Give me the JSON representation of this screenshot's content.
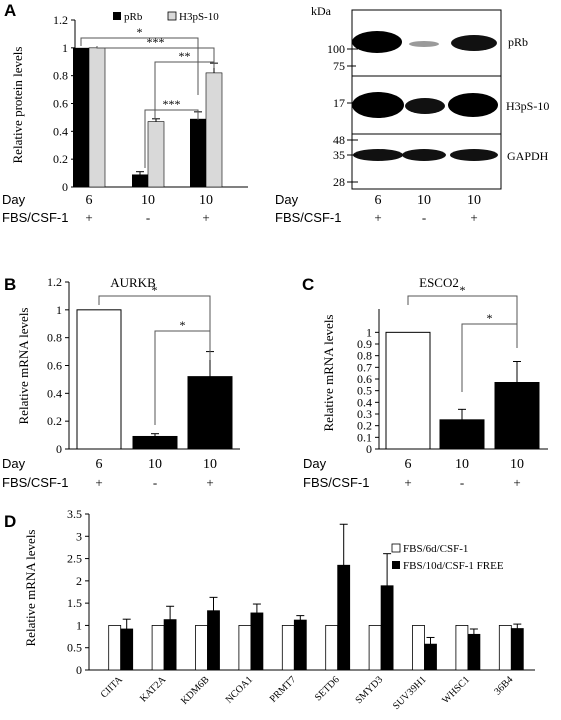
{
  "panels": {
    "A": {
      "letter": "A"
    },
    "B": {
      "letter": "B"
    },
    "C": {
      "letter": "C"
    },
    "D": {
      "letter": "D"
    }
  },
  "conditions": {
    "row1_label": "Day",
    "row2_label": "FBS/CSF-1",
    "days": [
      "6",
      "10",
      "10"
    ],
    "signs": [
      "+",
      "-",
      "+"
    ]
  },
  "chart_data": [
    {
      "panel": "A",
      "type": "bar",
      "title": "",
      "ylabel": "Relative protein levels",
      "ylim": [
        0,
        1.2
      ],
      "yticks": [
        "0",
        "0.2",
        "0.4",
        "0.6",
        "0.8",
        "1",
        "1.2"
      ],
      "categories": [
        "Day 6 +",
        "Day 10 -",
        "Day 10 +"
      ],
      "series": [
        {
          "name": "pRb",
          "values": [
            1.0,
            0.09,
            0.49
          ],
          "errors": [
            0,
            0.02,
            0.05
          ],
          "color": "#000000"
        },
        {
          "name": "H3pS-10",
          "values": [
            1.0,
            0.47,
            0.82
          ],
          "errors": [
            0,
            0.02,
            0.07
          ],
          "color": "#d9d9d9"
        }
      ],
      "significance": [
        "*",
        "***",
        "**",
        "***"
      ]
    },
    {
      "panel": "B",
      "type": "bar",
      "title": "AURKB",
      "ylabel": "Relative mRNA levels",
      "ylim": [
        0,
        1.2
      ],
      "yticks": [
        "0",
        "0.2",
        "0.4",
        "0.6",
        "0.8",
        "1",
        "1.2"
      ],
      "categories": [
        "Day 6 +",
        "Day 10 -",
        "Day 10 +"
      ],
      "values": [
        1.0,
        0.09,
        0.52
      ],
      "errors": [
        0,
        0.02,
        0.18
      ],
      "significance": [
        "*",
        "*"
      ]
    },
    {
      "panel": "C",
      "type": "bar",
      "title": "ESCO2",
      "ylabel": "Relative mRNA levels",
      "ylim": [
        0,
        1.2
      ],
      "yticks": [
        "0",
        "0.1",
        "0.2",
        "0.3",
        "0.4",
        "0.5",
        "0.6",
        "0.7",
        "0.8",
        "0.9",
        "1"
      ],
      "categories": [
        "Day 6 +",
        "Day 10 -",
        "Day 10 +"
      ],
      "values": [
        1.0,
        0.25,
        0.57
      ],
      "errors": [
        0,
        0.09,
        0.18
      ],
      "significance": [
        "*",
        "*"
      ]
    },
    {
      "panel": "D",
      "type": "bar",
      "title": "",
      "ylabel": "Relative mRNA levels",
      "ylim": [
        0,
        3.5
      ],
      "yticks": [
        "0",
        "0.5",
        "1",
        "1.5",
        "2",
        "2.5",
        "3",
        "3.5"
      ],
      "categories": [
        "CIITA",
        "KAT2A",
        "KDM6B",
        "NCOA1",
        "PRMT7",
        "SETD6",
        "SMYD3",
        "SUV39H1",
        "WHSC1",
        "36B4"
      ],
      "series": [
        {
          "name": "FBS/6d/CSF-1",
          "values": [
            1,
            1,
            1,
            1,
            1,
            1,
            1,
            1,
            1,
            1
          ],
          "color": "#ffffff"
        },
        {
          "name": "FBS/10d/CSF-1 FREE",
          "values": [
            0.92,
            1.13,
            1.33,
            1.28,
            1.12,
            2.35,
            1.89,
            0.58,
            0.8,
            0.93
          ],
          "errors": [
            0.22,
            0.3,
            0.3,
            0.2,
            0.1,
            0.92,
            0.72,
            0.15,
            0.12,
            0.1
          ],
          "color": "#000000"
        }
      ]
    }
  ],
  "blot": {
    "unit": "kDa",
    "bands": [
      "pRb",
      "H3pS-10",
      "GAPDH"
    ],
    "markers": [
      {
        "panel": 0,
        "labels": [
          "100",
          "75"
        ]
      },
      {
        "panel": 1,
        "labels": [
          "17"
        ]
      },
      {
        "panel": 2,
        "labels": [
          "48",
          "35",
          "28"
        ]
      }
    ]
  }
}
